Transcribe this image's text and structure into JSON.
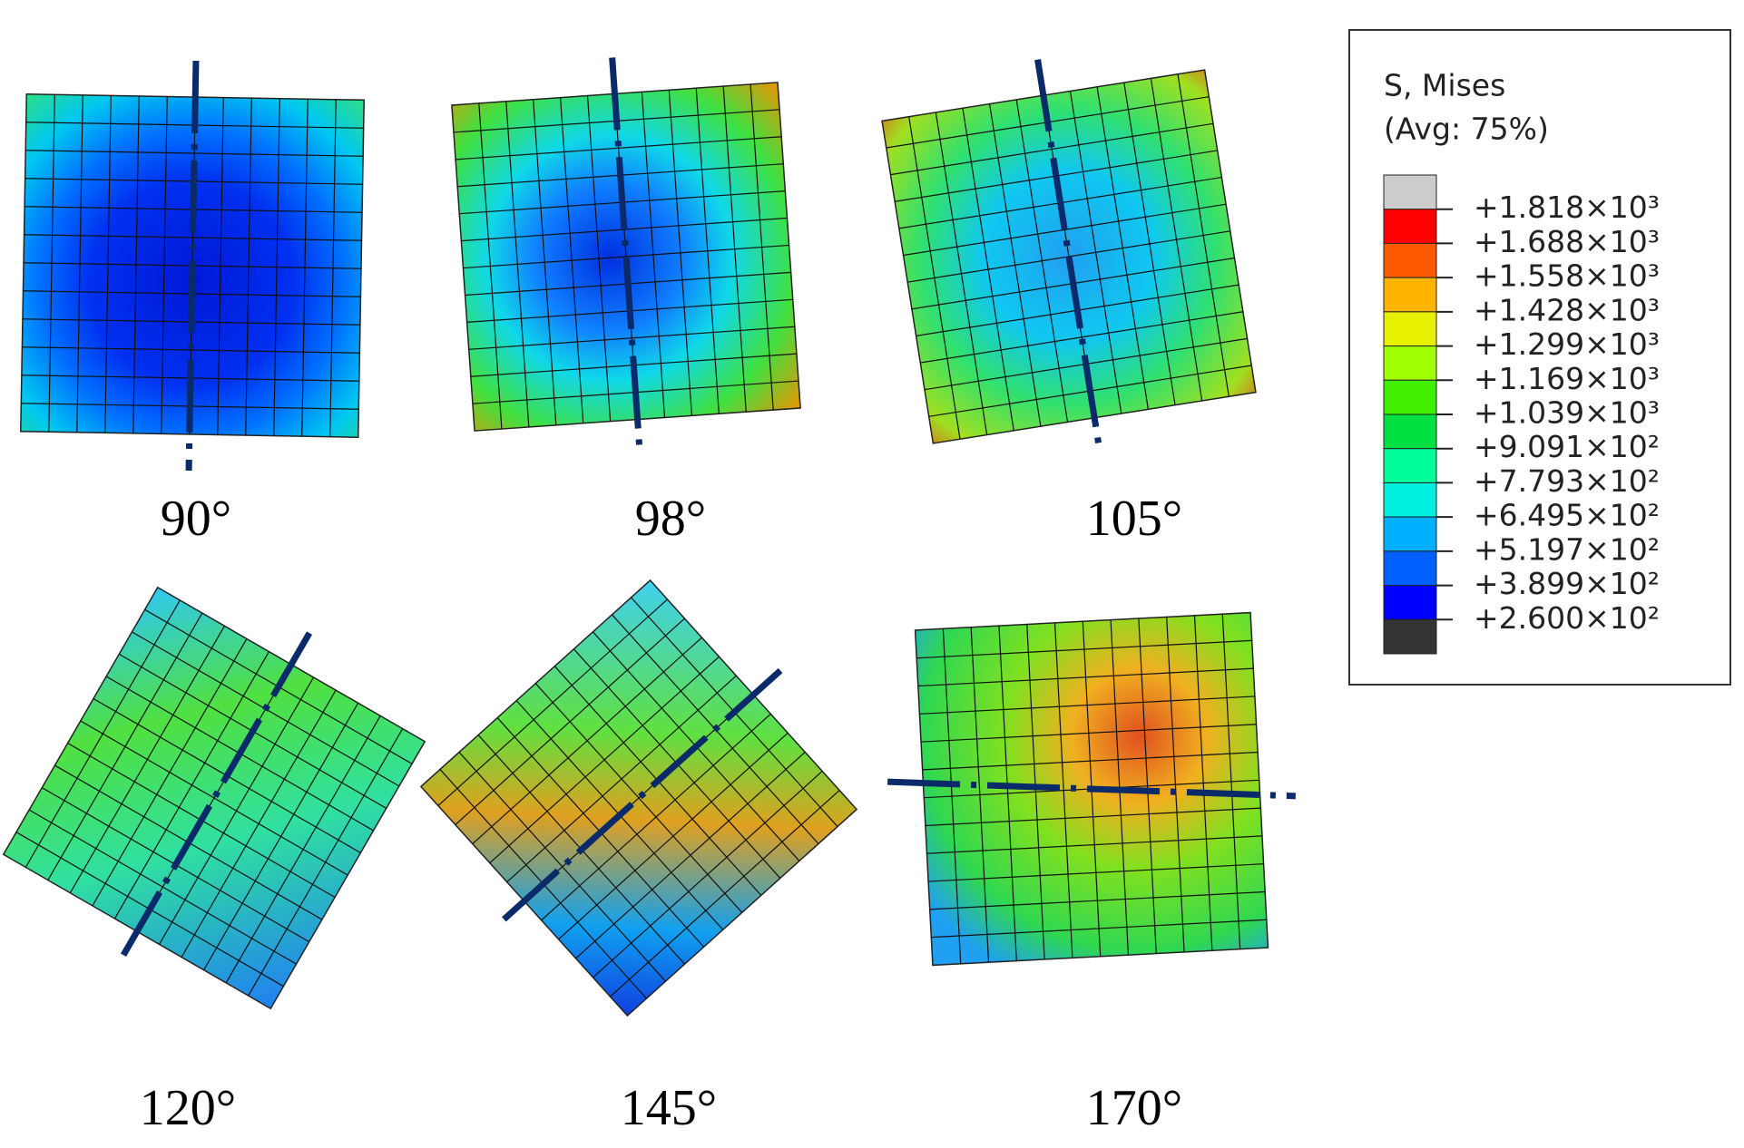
{
  "panels": [
    {
      "label": "90°"
    },
    {
      "label": "98°"
    },
    {
      "label": "105°"
    },
    {
      "label": "120°"
    },
    {
      "label": "145°"
    },
    {
      "label": "170°"
    }
  ],
  "legend": {
    "title": "S, Mises",
    "subtitle": "(Avg: 75%)",
    "colors": [
      "#cccccc",
      "#ff0000",
      "#ff5a00",
      "#ffb400",
      "#e6f000",
      "#a0ff00",
      "#40f000",
      "#00e040",
      "#00ff9a",
      "#00f0e0",
      "#00b0ff",
      "#0060ff",
      "#0000ff",
      "#333333"
    ],
    "ticks": [
      "+1.818×10³",
      "+1.688×10³",
      "+1.558×10³",
      "+1.428×10³",
      "+1.299×10³",
      "+1.169×10³",
      "+1.039×10³",
      "+9.091×10²",
      "+7.793×10²",
      "+6.495×10²",
      "+5.197×10²",
      "+3.899×10²",
      "+2.600×10²"
    ]
  }
}
